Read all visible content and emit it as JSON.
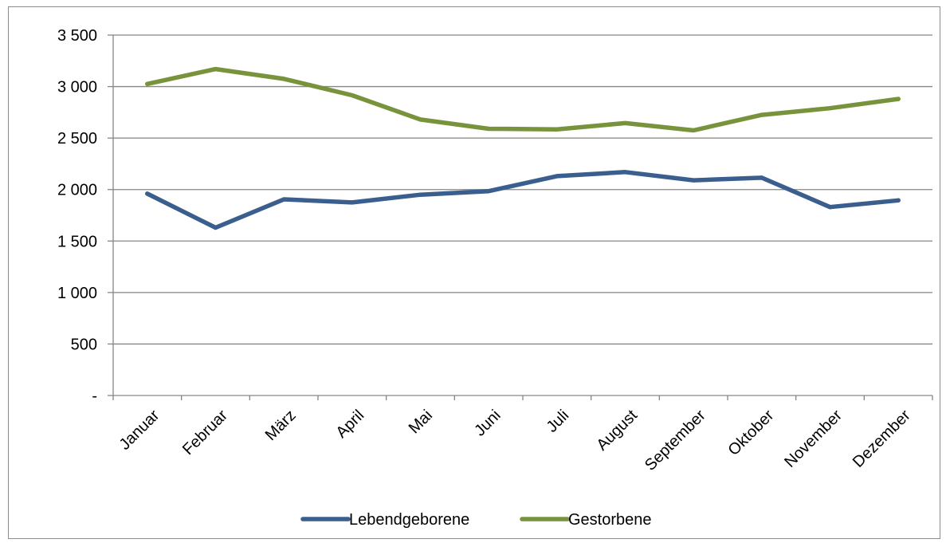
{
  "chart_data": {
    "type": "line",
    "categories": [
      "Januar",
      "Februar",
      "März",
      "April",
      "Mai",
      "Juni",
      "Juli",
      "August",
      "September",
      "Oktober",
      "November",
      "Dezember"
    ],
    "series": [
      {
        "name": "Lebendgeborene",
        "color": "#3a5f8f",
        "values": [
          1960,
          1630,
          1905,
          1875,
          1950,
          1985,
          2130,
          2170,
          2090,
          2115,
          1830,
          1895
        ]
      },
      {
        "name": "Gestorbene",
        "color": "#77933c",
        "values": [
          3025,
          3170,
          3075,
          2915,
          2680,
          2590,
          2585,
          2645,
          2575,
          2725,
          2790,
          2880
        ]
      }
    ],
    "yticks": [
      {
        "value": 0,
        "label": "-"
      },
      {
        "value": 500,
        "label": "500"
      },
      {
        "value": 1000,
        "label": "1 000"
      },
      {
        "value": 1500,
        "label": "1 500"
      },
      {
        "value": 2000,
        "label": "2 000"
      },
      {
        "value": 2500,
        "label": "2 500"
      },
      {
        "value": 3000,
        "label": "3 000"
      },
      {
        "value": 3500,
        "label": "3 500"
      }
    ],
    "ylim": [
      0,
      3500
    ],
    "grid": true,
    "legend_position": "bottom"
  }
}
